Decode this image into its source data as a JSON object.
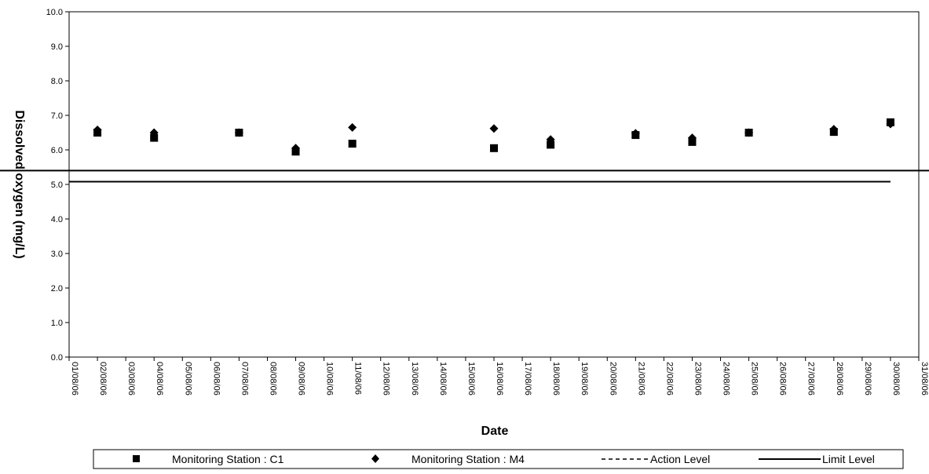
{
  "chart_data": {
    "type": "scatter",
    "title": "",
    "xlabel": "Date",
    "ylabel": "Dissolved oxygen (mg/L)",
    "ylim": [
      0,
      10
    ],
    "y_ticks": [
      "0.0",
      "1.0",
      "2.0",
      "3.0",
      "4.0",
      "5.0",
      "6.0",
      "7.0",
      "8.0",
      "9.0",
      "10.0"
    ],
    "x_ticks": [
      "01/08/06",
      "02/08/06",
      "03/08/06",
      "04/08/06",
      "05/08/06",
      "06/08/06",
      "07/08/06",
      "08/08/06",
      "09/08/06",
      "10/08/06",
      "11/08/06",
      "12/08/06",
      "13/08/06",
      "14/08/06",
      "15/08/06",
      "16/08/06",
      "17/08/06",
      "18/08/06",
      "19/08/06",
      "20/08/06",
      "21/08/06",
      "22/08/06",
      "23/08/06",
      "24/08/06",
      "25/08/06",
      "26/08/06",
      "27/08/06",
      "28/08/06",
      "29/08/06",
      "30/08/06",
      "31/08/06"
    ],
    "grid": false,
    "legend_position": "bottom",
    "series": [
      {
        "name": "Monitoring Station : C1",
        "marker": "square",
        "color": "#000000",
        "points": [
          {
            "x": "02/08/06",
            "y": 6.5
          },
          {
            "x": "04/08/06",
            "y": 6.35
          },
          {
            "x": "07/08/06",
            "y": 6.5
          },
          {
            "x": "09/08/06",
            "y": 5.95
          },
          {
            "x": "11/08/06",
            "y": 6.18
          },
          {
            "x": "16/08/06",
            "y": 6.05
          },
          {
            "x": "18/08/06",
            "y": 6.15
          },
          {
            "x": "21/08/06",
            "y": 6.43
          },
          {
            "x": "23/08/06",
            "y": 6.23
          },
          {
            "x": "25/08/06",
            "y": 6.5
          },
          {
            "x": "28/08/06",
            "y": 6.52
          },
          {
            "x": "30/08/06",
            "y": 6.8
          }
        ]
      },
      {
        "name": "Monitoring Station : M4",
        "marker": "diamond",
        "color": "#000000",
        "points": [
          {
            "x": "02/08/06",
            "y": 6.58
          },
          {
            "x": "04/08/06",
            "y": 6.5
          },
          {
            "x": "07/08/06",
            "y": 6.5
          },
          {
            "x": "09/08/06",
            "y": 6.05
          },
          {
            "x": "11/08/06",
            "y": 6.65
          },
          {
            "x": "16/08/06",
            "y": 6.62
          },
          {
            "x": "18/08/06",
            "y": 6.3
          },
          {
            "x": "21/08/06",
            "y": 6.48
          },
          {
            "x": "23/08/06",
            "y": 6.35
          },
          {
            "x": "25/08/06",
            "y": 6.5
          },
          {
            "x": "28/08/06",
            "y": 6.6
          },
          {
            "x": "30/08/06",
            "y": 6.75
          }
        ]
      }
    ],
    "reference_lines": [
      {
        "name": "Action Level",
        "style": "dashed",
        "y": 5.4
      },
      {
        "name": "Limit Level",
        "style": "solid",
        "y": 5.08,
        "x_start": "01/08/06",
        "x_end": "30/08/06"
      }
    ]
  }
}
